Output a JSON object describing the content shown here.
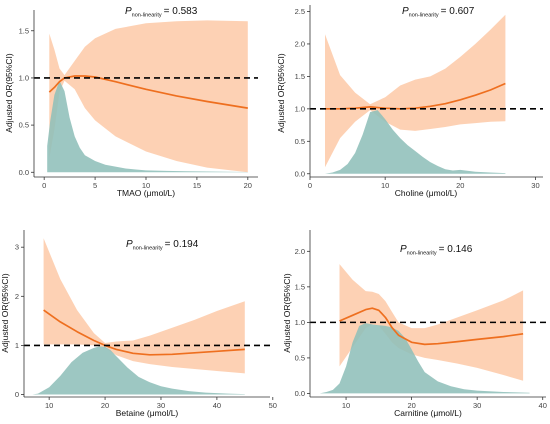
{
  "colors": {
    "ci_fill": "#fdc7a4",
    "density_fill": "#8fbfb9",
    "spline_line": "#ee6f1f",
    "reference_line": "#000000",
    "axis": "#333333"
  },
  "p_label": {
    "symbol": "P",
    "subscript": "non-linearity",
    "equals": "= "
  },
  "chart_data": [
    {
      "type": "line",
      "id": "tmao",
      "p_value": "0.583",
      "xlabel": "TMAO (μmol/L)",
      "ylabel": "Adjusted OR(95%CI)",
      "xlim": [
        -1,
        21
      ],
      "ylim": [
        -0.05,
        1.72
      ],
      "xticks": [
        "0",
        "5",
        "10",
        "15",
        "20"
      ],
      "yticks": [
        "0.0",
        "0.5",
        "1.0",
        "1.5"
      ],
      "reference_y": 1.0,
      "x": [
        0.5,
        1,
        1.5,
        2,
        3,
        4,
        5,
        7,
        10,
        13,
        16,
        20
      ],
      "or": [
        0.85,
        0.9,
        0.96,
        1.0,
        1.02,
        1.02,
        1.01,
        0.96,
        0.88,
        0.81,
        0.75,
        0.68
      ],
      "ci_lower": [
        0.15,
        0.45,
        0.85,
        0.97,
        0.88,
        0.68,
        0.55,
        0.38,
        0.22,
        0.12,
        0.05,
        0.0
      ],
      "ci_upper": [
        1.47,
        1.3,
        1.1,
        1.03,
        1.18,
        1.33,
        1.42,
        1.52,
        1.58,
        1.6,
        1.61,
        1.6
      ],
      "density_x": [
        0.3,
        0.6,
        1,
        1.5,
        2,
        2.5,
        3,
        3.5,
        4,
        5,
        6,
        7,
        8,
        9,
        10,
        12,
        14,
        16,
        18,
        20
      ],
      "density_y": [
        0.28,
        0.55,
        0.82,
        0.97,
        0.86,
        0.58,
        0.38,
        0.26,
        0.18,
        0.12,
        0.08,
        0.06,
        0.04,
        0.03,
        0.02,
        0.015,
        0.01,
        0.008,
        0.005,
        0.003
      ]
    },
    {
      "type": "line",
      "id": "choline",
      "p_value": "0.607",
      "xlabel": "Choline (μmol/L)",
      "ylabel": "Adjusted OR(95%CI)",
      "xlim": [
        0,
        31
      ],
      "ylim": [
        -0.05,
        2.6
      ],
      "xticks": [
        "0",
        "10",
        "20",
        "30"
      ],
      "yticks": [
        "0.0",
        "0.5",
        "1.0",
        "1.5",
        "2.0",
        "2.5"
      ],
      "reference_y": 1.0,
      "x": [
        2,
        4,
        6,
        8,
        10,
        12,
        14,
        16,
        18,
        20,
        22,
        24,
        26
      ],
      "or": [
        1.0,
        1.0,
        1.01,
        1.03,
        1.01,
        1.0,
        1.01,
        1.04,
        1.08,
        1.14,
        1.21,
        1.29,
        1.39
      ],
      "ci_lower": [
        0.1,
        0.55,
        0.8,
        0.98,
        0.8,
        0.68,
        0.66,
        0.69,
        0.72,
        0.76,
        0.78,
        0.8,
        0.81
      ],
      "ci_upper": [
        2.15,
        1.52,
        1.25,
        1.07,
        1.18,
        1.36,
        1.45,
        1.5,
        1.62,
        1.8,
        2.0,
        2.22,
        2.45
      ],
      "density_x": [
        2,
        3,
        4,
        5,
        6,
        7,
        8,
        9,
        10,
        11,
        12,
        13,
        14,
        15,
        16,
        17,
        18,
        19,
        20,
        22,
        24,
        26
      ],
      "density_y": [
        0.0,
        0.02,
        0.06,
        0.15,
        0.32,
        0.6,
        0.95,
        0.98,
        0.84,
        0.68,
        0.55,
        0.44,
        0.35,
        0.26,
        0.18,
        0.12,
        0.07,
        0.05,
        0.06,
        0.03,
        0.02,
        0.01
      ]
    },
    {
      "type": "line",
      "id": "betaine",
      "p_value": "0.194",
      "xlabel": "Betaine (μmol/L)",
      "ylabel": "Adjusted OR(95%CI)",
      "xlim": [
        5.5,
        49.5
      ],
      "ylim": [
        -0.05,
        3.35
      ],
      "xticks": [
        "10",
        "20",
        "30",
        "40",
        "50"
      ],
      "yticks": [
        "0",
        "1",
        "2",
        "3"
      ],
      "reference_y": 1.0,
      "x": [
        9,
        12,
        15,
        18,
        20,
        22,
        25,
        28,
        32,
        36,
        40,
        45
      ],
      "or": [
        1.72,
        1.48,
        1.28,
        1.1,
        1.0,
        0.92,
        0.84,
        0.81,
        0.82,
        0.85,
        0.88,
        0.92
      ],
      "ci_lower": [
        1.02,
        1.02,
        1.02,
        1.0,
        0.95,
        0.8,
        0.68,
        0.62,
        0.56,
        0.52,
        0.48,
        0.43
      ],
      "ci_upper": [
        3.18,
        2.35,
        1.72,
        1.25,
        1.05,
        1.08,
        1.1,
        1.2,
        1.36,
        1.52,
        1.7,
        1.9
      ],
      "density_x": [
        7,
        8,
        10,
        12,
        14,
        16,
        18,
        19,
        20,
        21,
        22,
        24,
        26,
        28,
        30,
        32,
        35,
        38,
        40,
        42,
        45
      ],
      "density_y": [
        0.0,
        0.02,
        0.15,
        0.38,
        0.66,
        0.85,
        0.95,
        0.98,
        0.97,
        0.9,
        0.78,
        0.55,
        0.36,
        0.25,
        0.17,
        0.12,
        0.07,
        0.04,
        0.03,
        0.02,
        0.01
      ]
    },
    {
      "type": "line",
      "id": "carnitine",
      "p_value": "0.146",
      "xlabel": "Carnitine (μmol/L)",
      "ylabel": "Adjusted OR(95%CI)",
      "xlim": [
        4.5,
        40.5
      ],
      "ylim": [
        -0.05,
        2.3
      ],
      "xticks": [
        "10",
        "20",
        "30",
        "40"
      ],
      "yticks": [
        "0.0",
        "0.5",
        "1.0",
        "1.5",
        "2.0"
      ],
      "reference_y": 1.0,
      "x": [
        9,
        11,
        13,
        14,
        15,
        16,
        17,
        18,
        20,
        22,
        24,
        27,
        30,
        34,
        37
      ],
      "or": [
        1.02,
        1.1,
        1.18,
        1.2,
        1.17,
        1.07,
        0.93,
        0.82,
        0.72,
        0.69,
        0.7,
        0.73,
        0.76,
        0.8,
        0.84
      ],
      "ci_lower": [
        0.38,
        0.65,
        0.92,
        0.97,
        0.95,
        0.84,
        0.72,
        0.64,
        0.55,
        0.5,
        0.47,
        0.42,
        0.36,
        0.26,
        0.18
      ],
      "ci_upper": [
        1.82,
        1.6,
        1.44,
        1.43,
        1.4,
        1.3,
        1.15,
        1.0,
        0.92,
        0.92,
        0.97,
        1.07,
        1.17,
        1.31,
        1.45
      ],
      "density_x": [
        6,
        7,
        8,
        9,
        10,
        11,
        12,
        13,
        14,
        15,
        16,
        17,
        18,
        19,
        20,
        21,
        22,
        24,
        26,
        28,
        30,
        34,
        38
      ],
      "density_y": [
        0.0,
        0.02,
        0.05,
        0.14,
        0.38,
        0.72,
        0.95,
        0.99,
        0.97,
        0.96,
        0.95,
        0.93,
        0.88,
        0.78,
        0.62,
        0.45,
        0.3,
        0.17,
        0.1,
        0.06,
        0.04,
        0.02,
        0.01
      ]
    }
  ]
}
